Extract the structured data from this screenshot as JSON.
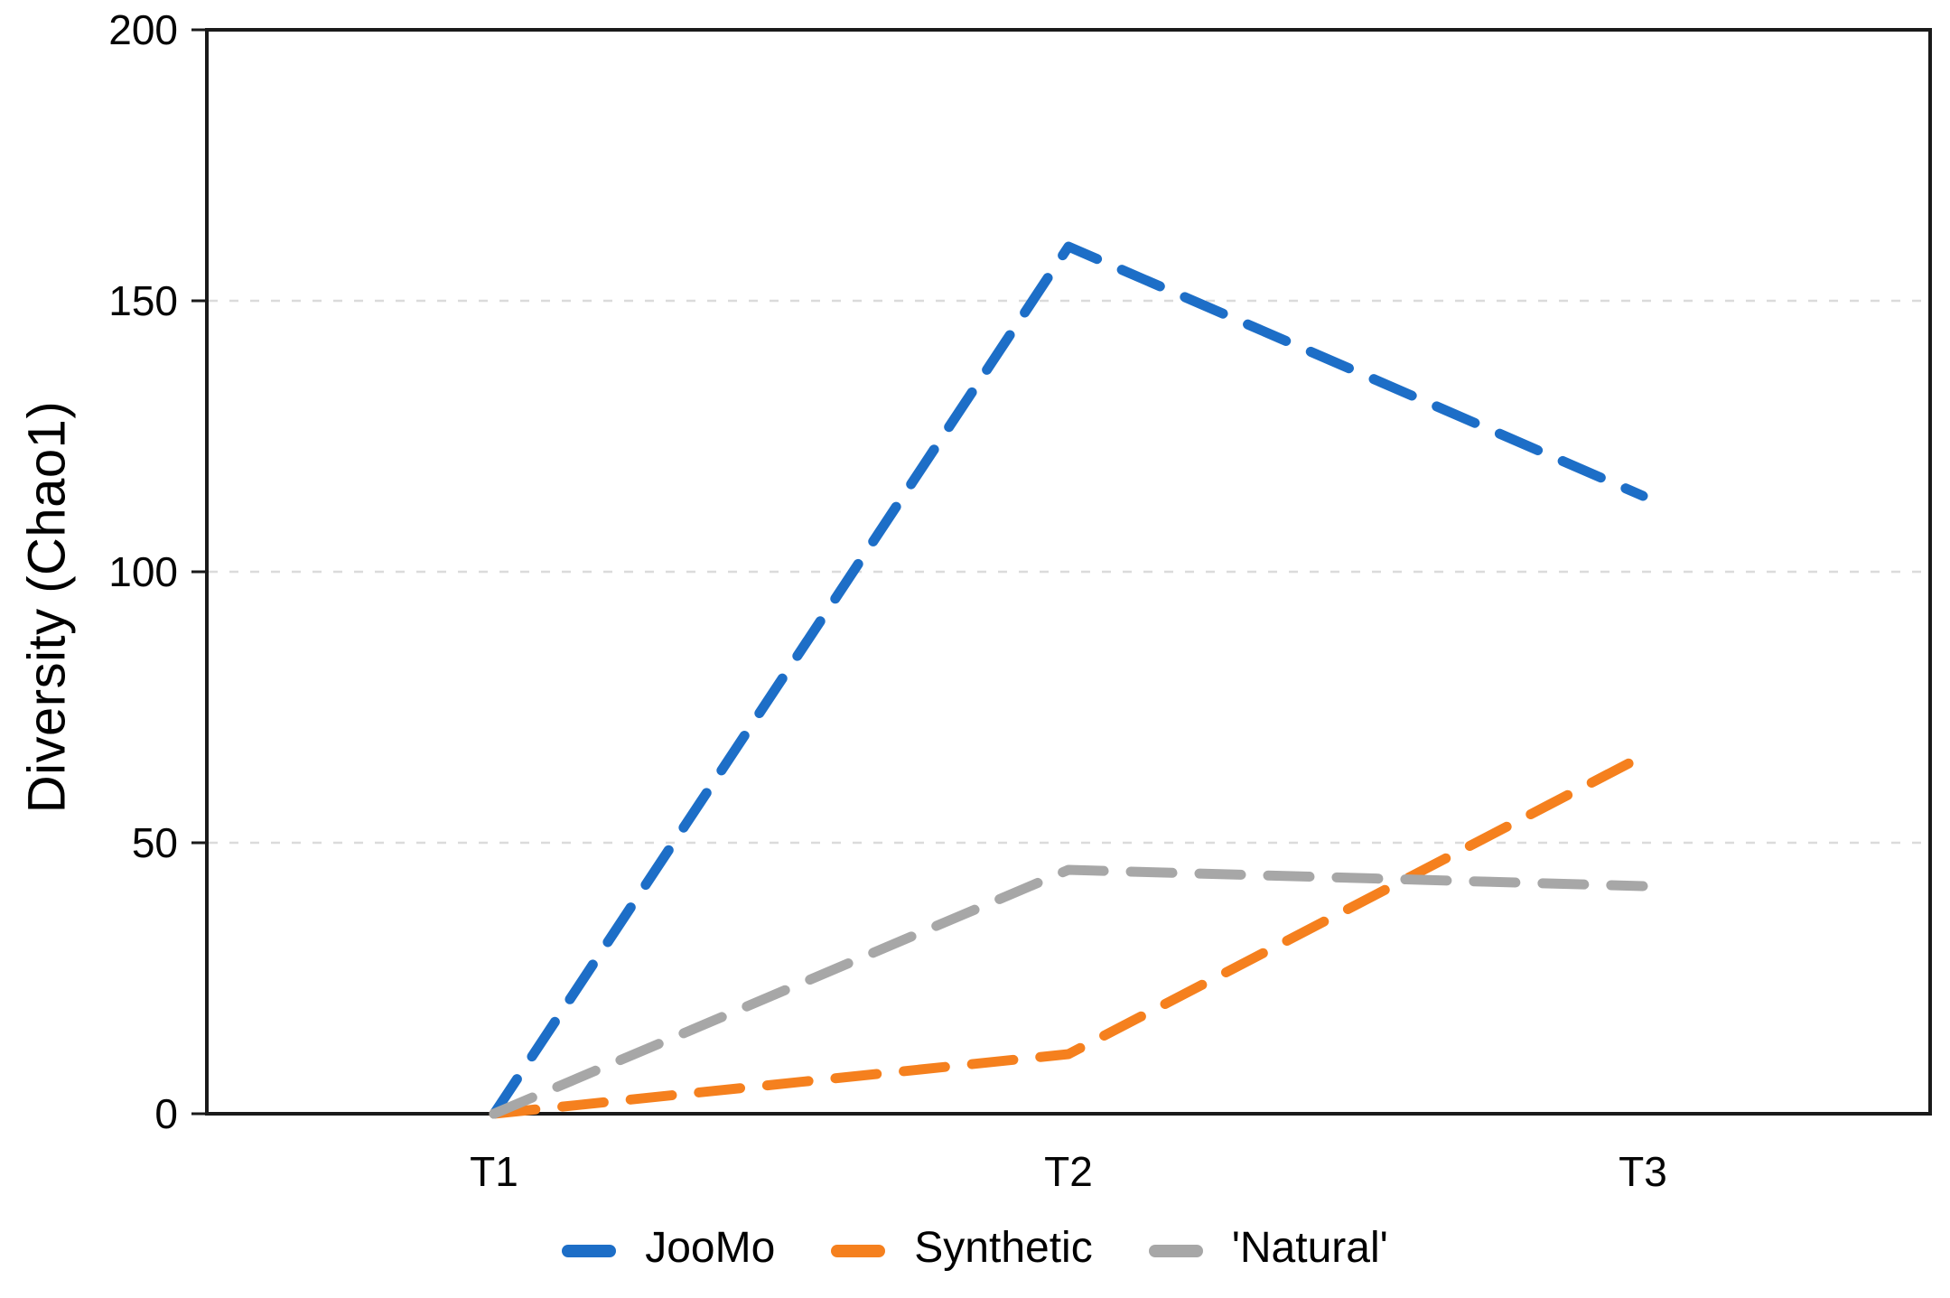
{
  "chart_data": {
    "type": "line",
    "categories": [
      "T1",
      "T2",
      "T3"
    ],
    "series": [
      {
        "name": "JooMo",
        "color": "#1D6EC7",
        "line_style": "dashed",
        "values": [
          0,
          160,
          114
        ]
      },
      {
        "name": "Synthetic",
        "color": "#F5801E",
        "line_style": "dashed",
        "values": [
          0,
          11,
          66
        ]
      },
      {
        "name": "'Natural'",
        "color": "#A7A7A7",
        "line_style": "dashed",
        "values": [
          0,
          45,
          42
        ]
      }
    ],
    "title": "",
    "xlabel": "",
    "ylabel": "Diversity (Chao1)",
    "ylim": [
      0,
      200
    ],
    "yticks": [
      0,
      50,
      100,
      150,
      200
    ],
    "ytick_labels": [
      "0",
      "50",
      "100",
      "150",
      "200"
    ],
    "grid": "horizontal-dashed",
    "gridline_color": "#DBDBDB",
    "axis_color": "#1A1A1A",
    "text_color": "#050505",
    "legend_position": "bottom"
  }
}
